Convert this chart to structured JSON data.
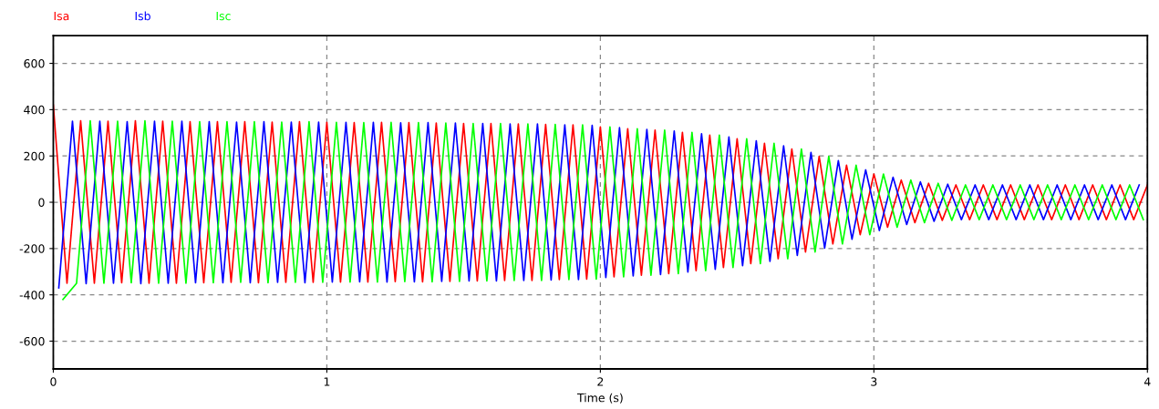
{
  "chart_data": {
    "type": "line",
    "xlabel": "Time (s)",
    "xlim": [
      0,
      4
    ],
    "ylim": [
      -720,
      720
    ],
    "xticks": [
      0,
      1,
      2,
      3,
      4
    ],
    "yticks": [
      -600,
      -400,
      -200,
      0,
      200,
      400,
      600
    ],
    "grid": true,
    "legend": "top left",
    "series": [
      {
        "name": "Isa",
        "color": "#ff0000",
        "x": [
          0,
          0.05,
          0.1,
          0.15,
          0.2,
          0.25,
          0.3,
          0.35,
          0.4,
          0.45,
          0.5,
          0.55,
          0.6,
          0.65,
          0.7,
          0.75,
          0.8,
          0.85,
          0.9,
          0.95,
          1,
          1.05,
          1.1,
          1.15,
          1.2,
          1.25,
          1.3,
          1.35,
          1.4,
          1.45,
          1.5,
          1.55,
          1.6,
          1.65,
          1.7,
          1.75,
          1.8,
          1.85,
          1.9,
          1.95,
          2,
          2.05,
          2.1,
          2.15,
          2.2,
          2.25,
          2.3,
          2.35,
          2.4,
          2.45,
          2.5,
          2.55,
          2.6,
          2.65,
          2.7,
          2.75,
          2.8,
          2.85,
          2.9,
          2.95,
          3,
          3.05,
          3.1,
          3.15,
          3.2,
          3.25,
          3.3,
          3.35,
          3.4,
          3.45,
          3.5,
          3.55,
          3.6,
          3.65,
          3.7,
          3.75,
          3.8,
          3.85,
          3.9,
          3.95,
          4
        ],
        "values": [
          420,
          -350,
          352,
          -350,
          350,
          -348,
          352,
          -350,
          350,
          -350,
          348,
          -348,
          348,
          -346,
          348,
          -348,
          346,
          -346,
          348,
          -346,
          345,
          -345,
          344,
          -345,
          345,
          -343,
          344,
          -344,
          342,
          -342,
          340,
          -340,
          340,
          -338,
          338,
          -338,
          336,
          -334,
          334,
          -332,
          325,
          -322,
          318,
          -315,
          312,
          -308,
          302,
          -296,
          290,
          -282,
          274,
          -265,
          255,
          -244,
          230,
          -215,
          198,
          -180,
          160,
          -140,
          122,
          -108,
          96,
          -88,
          82,
          -78,
          75,
          -75,
          75,
          -75,
          75,
          -75,
          75,
          -75,
          75,
          -75,
          75,
          -75,
          75,
          -75,
          75
        ]
      },
      {
        "name": "Isb",
        "color": "#0000ff",
        "x": [
          0.02,
          0.07,
          0.12,
          0.17,
          0.22,
          0.27,
          0.32,
          0.37,
          0.42,
          0.47,
          0.52,
          0.57,
          0.62,
          0.67,
          0.72,
          0.77,
          0.82,
          0.87,
          0.92,
          0.97,
          1.02,
          1.07,
          1.12,
          1.17,
          1.22,
          1.27,
          1.32,
          1.37,
          1.42,
          1.47,
          1.52,
          1.57,
          1.62,
          1.67,
          1.72,
          1.77,
          1.82,
          1.87,
          1.92,
          1.97,
          2.02,
          2.07,
          2.12,
          2.17,
          2.22,
          2.27,
          2.32,
          2.37,
          2.42,
          2.47,
          2.52,
          2.57,
          2.62,
          2.67,
          2.72,
          2.77,
          2.82,
          2.87,
          2.92,
          2.97,
          3.02,
          3.07,
          3.12,
          3.17,
          3.22,
          3.27,
          3.32,
          3.37,
          3.42,
          3.47,
          3.52,
          3.57,
          3.62,
          3.67,
          3.72,
          3.77,
          3.82,
          3.87,
          3.92,
          3.97
        ],
        "values": [
          -370,
          350,
          -352,
          350,
          -350,
          348,
          -352,
          350,
          -350,
          350,
          -348,
          348,
          -348,
          346,
          -348,
          348,
          -346,
          346,
          -348,
          346,
          -345,
          345,
          -344,
          345,
          -345,
          343,
          -344,
          344,
          -342,
          342,
          -340,
          340,
          -340,
          338,
          -338,
          338,
          -336,
          334,
          -334,
          332,
          -325,
          322,
          -318,
          315,
          -312,
          308,
          -302,
          296,
          -290,
          282,
          -274,
          265,
          -255,
          244,
          -230,
          215,
          -198,
          180,
          -160,
          140,
          -122,
          108,
          -96,
          88,
          -82,
          78,
          -75,
          75,
          -75,
          75,
          -75,
          75,
          -75,
          75,
          -75,
          75,
          -75,
          75,
          -75,
          75
        ]
      },
      {
        "name": "Isc",
        "color": "#00ff00",
        "x": [
          0.035,
          0.085,
          0.135,
          0.185,
          0.235,
          0.285,
          0.335,
          0.385,
          0.435,
          0.485,
          0.535,
          0.585,
          0.635,
          0.685,
          0.735,
          0.785,
          0.835,
          0.885,
          0.935,
          0.985,
          1.035,
          1.085,
          1.135,
          1.185,
          1.235,
          1.285,
          1.335,
          1.385,
          1.435,
          1.485,
          1.535,
          1.585,
          1.635,
          1.685,
          1.735,
          1.785,
          1.835,
          1.885,
          1.935,
          1.985,
          2.035,
          2.085,
          2.135,
          2.185,
          2.235,
          2.285,
          2.335,
          2.385,
          2.435,
          2.485,
          2.535,
          2.585,
          2.635,
          2.685,
          2.735,
          2.785,
          2.835,
          2.885,
          2.935,
          2.985,
          3.035,
          3.085,
          3.135,
          3.185,
          3.235,
          3.285,
          3.335,
          3.385,
          3.435,
          3.485,
          3.535,
          3.585,
          3.635,
          3.685,
          3.735,
          3.785,
          3.835,
          3.885,
          3.935,
          3.985
        ],
        "values": [
          -420,
          -350,
          352,
          -350,
          350,
          -348,
          352,
          -350,
          350,
          -350,
          348,
          -348,
          348,
          -346,
          348,
          -348,
          346,
          -346,
          348,
          -346,
          345,
          -345,
          344,
          -345,
          345,
          -343,
          344,
          -344,
          342,
          -342,
          340,
          -340,
          340,
          -338,
          338,
          -338,
          336,
          -334,
          334,
          -332,
          325,
          -322,
          318,
          -315,
          312,
          -308,
          302,
          -296,
          290,
          -282,
          274,
          -265,
          255,
          -244,
          230,
          -215,
          198,
          -180,
          160,
          -140,
          122,
          -108,
          96,
          -88,
          82,
          -78,
          75,
          -75,
          75,
          -75,
          75,
          -75,
          75,
          -75,
          75,
          -75,
          75,
          -75,
          75,
          -75
        ]
      }
    ]
  }
}
